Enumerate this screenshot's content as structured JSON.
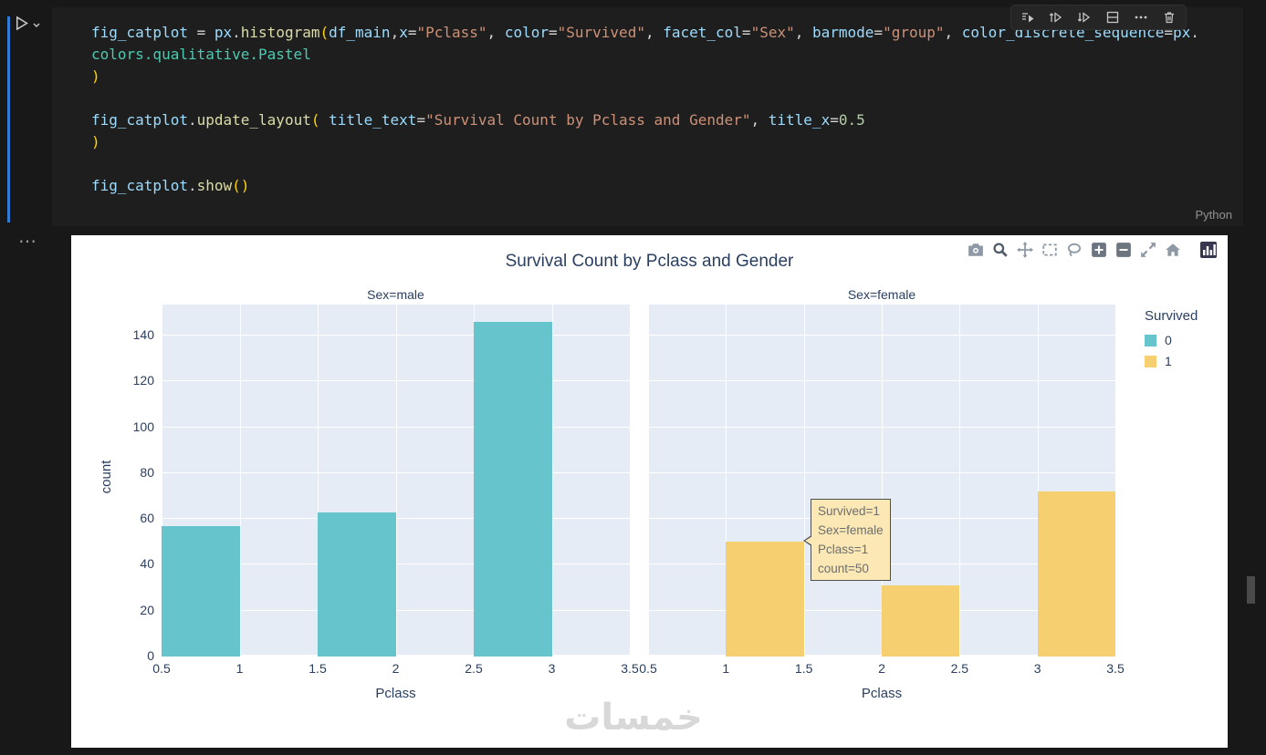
{
  "editor": {
    "language_label": "Python",
    "toolbar_icons": [
      "run-by-line-icon",
      "execute-above-icon",
      "execute-below-icon",
      "split-cell-icon",
      "more-actions-icon",
      "delete-cell-icon"
    ],
    "run_icon": "run-cell-icon",
    "code_lines": [
      [
        {
          "t": "fig_catplot",
          "c": "var"
        },
        {
          "t": " = ",
          "c": "op"
        },
        {
          "t": "px",
          "c": "var"
        },
        {
          "t": ".",
          "c": "op"
        },
        {
          "t": "histogram",
          "c": "fn"
        },
        {
          "t": "(",
          "c": "brk"
        },
        {
          "t": "df_main",
          "c": "var"
        },
        {
          "t": ",",
          "c": "op"
        },
        {
          "t": "x",
          "c": "var"
        },
        {
          "t": "=",
          "c": "op"
        },
        {
          "t": "\"Pclass\"",
          "c": "str"
        },
        {
          "t": ", ",
          "c": "op"
        },
        {
          "t": "color",
          "c": "var"
        },
        {
          "t": "=",
          "c": "op"
        },
        {
          "t": "\"Survived\"",
          "c": "str"
        },
        {
          "t": ", ",
          "c": "op"
        },
        {
          "t": "facet_col",
          "c": "var"
        },
        {
          "t": "=",
          "c": "op"
        },
        {
          "t": "\"Sex\"",
          "c": "str"
        },
        {
          "t": ", ",
          "c": "op"
        },
        {
          "t": "barmode",
          "c": "var"
        },
        {
          "t": "=",
          "c": "op"
        },
        {
          "t": "\"group\"",
          "c": "str"
        },
        {
          "t": ", ",
          "c": "op"
        },
        {
          "t": "color_discrete_sequence",
          "c": "var"
        },
        {
          "t": "=",
          "c": "op"
        },
        {
          "t": "px",
          "c": "var"
        },
        {
          "t": ".",
          "c": "op"
        }
      ],
      [
        {
          "t": "colors.qualitative.Pastel",
          "c": "type"
        }
      ],
      [
        {
          "t": ")",
          "c": "brk"
        }
      ],
      [],
      [
        {
          "t": "fig_catplot",
          "c": "var"
        },
        {
          "t": ".",
          "c": "op"
        },
        {
          "t": "update_layout",
          "c": "fn"
        },
        {
          "t": "( ",
          "c": "brk"
        },
        {
          "t": "title_text",
          "c": "var"
        },
        {
          "t": "=",
          "c": "op"
        },
        {
          "t": "\"Survival Count by Pclass and Gender\"",
          "c": "str"
        },
        {
          "t": ", ",
          "c": "op"
        },
        {
          "t": "title_x",
          "c": "var"
        },
        {
          "t": "=",
          "c": "op"
        },
        {
          "t": "0.5",
          "c": "num"
        }
      ],
      [
        {
          "t": ")",
          "c": "brk"
        }
      ],
      [],
      [
        {
          "t": "fig_catplot",
          "c": "var"
        },
        {
          "t": ".",
          "c": "op"
        },
        {
          "t": "show",
          "c": "fn"
        },
        {
          "t": "()",
          "c": "brk"
        }
      ]
    ]
  },
  "output": {
    "watermark": "خمسات",
    "modebar_icons": [
      "camera-icon",
      "zoom-icon",
      "pan-icon",
      "box-select-icon",
      "lasso-icon",
      "zoom-in-icon",
      "zoom-out-icon",
      "autoscale-icon",
      "reset-axes-icon",
      "plotly-logo-icon"
    ]
  },
  "chart_data": {
    "type": "bar",
    "title": "Survival Count by Pclass and Gender",
    "xlabel": "Pclass",
    "ylabel": "count",
    "x_range": [
      0.5,
      3.5
    ],
    "y_range": [
      0,
      153.5
    ],
    "x_ticks": [
      0.5,
      1,
      1.5,
      2,
      2.5,
      3,
      3.5
    ],
    "y_ticks": [
      0,
      20,
      40,
      60,
      80,
      100,
      120,
      140
    ],
    "bar_width": 0.5,
    "grid": true,
    "plot_bg": "#E5ECF6",
    "legend": {
      "title": "Survived",
      "position": "right",
      "entries": [
        {
          "label": "0",
          "color": "#66C5CC"
        },
        {
          "label": "1",
          "color": "#F6CF71"
        }
      ]
    },
    "facets": [
      {
        "label": "Sex=male",
        "series": [
          {
            "name": "0",
            "color": "#66C5CC",
            "offset": -0.5,
            "points": [
              {
                "x": 1,
                "count": 57
              },
              {
                "x": 2,
                "count": 63
              },
              {
                "x": 3,
                "count": 146
              }
            ]
          }
        ]
      },
      {
        "label": "Sex=female",
        "series": [
          {
            "name": "1",
            "color": "#F6CF71",
            "offset": 0,
            "points": [
              {
                "x": 1,
                "count": 50
              },
              {
                "x": 2,
                "count": 31
              },
              {
                "x": 3,
                "count": 72
              }
            ]
          }
        ]
      }
    ],
    "tooltip": {
      "lines": [
        "Survived=1",
        "Sex=female",
        "Pclass=1",
        "count=50"
      ]
    }
  }
}
